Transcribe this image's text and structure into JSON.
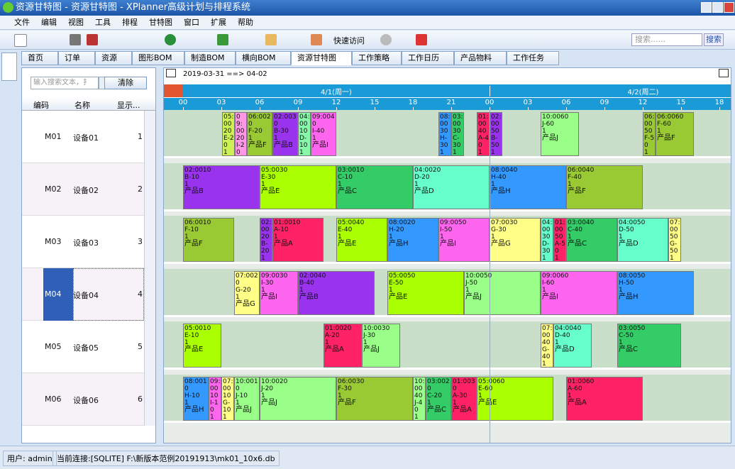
{
  "window": {
    "title": "资源甘特图 - 资源甘特图 - XPlanner高级计划与排程系统"
  },
  "menu": [
    "文件",
    "编辑",
    "视图",
    "工具",
    "排程",
    "甘特图",
    "窗口",
    "扩展",
    "帮助"
  ],
  "toolbar": {
    "quick_access": "快速访问",
    "search_placeholder": "搜索......",
    "search_button": "搜索"
  },
  "tabs": [
    "首页",
    "订单",
    "资源",
    "图形BOM",
    "制造BOM",
    "横向BOM",
    "资源甘特图",
    "工作策略",
    "工作日历",
    "产品物料",
    "工作任务"
  ],
  "left_panel": {
    "search_placeholder": "输入搜索文本，扌",
    "clear_button": "清除",
    "columns": [
      "编码",
      "名称",
      "显示..."
    ],
    "rows": [
      [
        "M01",
        "设备01",
        "1"
      ],
      [
        "M02",
        "设备02",
        "2"
      ],
      [
        "M03",
        "设备03",
        "3"
      ],
      [
        "M04",
        "设备04",
        "4"
      ],
      [
        "M05",
        "设备05",
        "5"
      ],
      [
        "M06",
        "设备06",
        "6"
      ]
    ]
  },
  "gantt": {
    "range": "2019-03-31 ==> 04-02",
    "days": [
      "4/1(周一)",
      "4/2(周二)"
    ],
    "hours": [
      "00",
      "03",
      "06",
      "09",
      "12",
      "15",
      "18",
      "21",
      "00",
      "03",
      "06",
      "09",
      "12",
      "15",
      "18"
    ],
    "rows": [
      {
        "tasks": [
          {
            "code": "05:0020",
            "op": "E-20",
            "qty": "1",
            "color": "#ccf055"
          },
          {
            "code": "09:0020",
            "op": "I-20",
            "qty": "1",
            "color": "#ff99e6"
          },
          {
            "code": "06:0020",
            "op": "F-20",
            "qty": "1",
            "product": "产品F",
            "color": "#99c933"
          },
          {
            "code": "02:0030",
            "op": "B-30",
            "qty": "1",
            "product": "产品B",
            "color": "#9933ee"
          },
          {
            "code": "04:0010",
            "op": "D-10",
            "qty": "1",
            "color": "#88f7aa"
          },
          {
            "code": "09:0040",
            "op": "I-40",
            "qty": "1",
            "product": "产品I",
            "color": "#ff66f0"
          },
          {
            "code": "08:0030",
            "op": "H-30",
            "qty": "1",
            "color": "#3399ff"
          },
          {
            "code": "03:0030",
            "op": "C-30",
            "qty": "1",
            "color": "#33cc66"
          },
          {
            "code": "01:0040",
            "op": "A-40",
            "qty": "1",
            "color": "#ff2266"
          },
          {
            "code": "02:0050",
            "op": "B-50",
            "qty": "1",
            "color": "#9933ee"
          },
          {
            "code": "10:0060",
            "op": "J-60",
            "qty": "1",
            "product": "产品J",
            "color": "#99ff88"
          },
          {
            "code": "06:0050",
            "op": "F-50",
            "qty": "1",
            "color": "#99c933"
          },
          {
            "code": "06:0060",
            "op": "F-60",
            "qty": "1",
            "product": "产品F",
            "color": "#99c933"
          }
        ]
      },
      {
        "tasks": [
          {
            "code": "02:0010",
            "op": "B-10",
            "qty": "1",
            "product": "产品B",
            "color": "#9933ee"
          },
          {
            "code": "05:0030",
            "op": "E-30",
            "qty": "1",
            "product": "产品E",
            "color": "#aaff00"
          },
          {
            "code": "03:0010",
            "op": "C-10",
            "qty": "1",
            "product": "产品C",
            "color": "#33cc66"
          },
          {
            "code": "04:0020",
            "op": "D-20",
            "qty": "1",
            "product": "产品D",
            "color": "#66ffcc"
          },
          {
            "code": "08:0040",
            "op": "H-40",
            "qty": "1",
            "product": "产品H",
            "color": "#3399ff"
          },
          {
            "code": "06:0040",
            "op": "F-40",
            "qty": "1",
            "product": "产品F",
            "color": "#99c933"
          }
        ]
      },
      {
        "tasks": [
          {
            "code": "06:0010",
            "op": "F-10",
            "qty": "1",
            "product": "产品F",
            "color": "#99c933"
          },
          {
            "code": "02:0020",
            "op": "B-20",
            "qty": "1",
            "color": "#9933ee"
          },
          {
            "code": "01:0010",
            "op": "A-10",
            "qty": "1",
            "product": "产品A",
            "color": "#ff2266"
          },
          {
            "code": "05:0040",
            "op": "E-40",
            "qty": "1",
            "product": "产品E",
            "color": "#aaff00"
          },
          {
            "code": "08:0020",
            "op": "H-20",
            "qty": "1",
            "product": "产品H",
            "color": "#3399ff"
          },
          {
            "code": "09:0050",
            "op": "I-50",
            "qty": "1",
            "product": "产品I",
            "color": "#ff66f0"
          },
          {
            "code": "07:0030",
            "op": "G-30",
            "qty": "1",
            "product": "产品G",
            "color": "#ffff88"
          },
          {
            "code": "04:0030",
            "op": "D-30",
            "qty": "1",
            "color": "#66ffcc"
          },
          {
            "code": "01:0050",
            "op": "A-50",
            "qty": "1",
            "color": "#ff2266"
          },
          {
            "code": "03:0040",
            "op": "C-40",
            "qty": "1",
            "product": "产品C",
            "color": "#33cc66"
          },
          {
            "code": "04:0050",
            "op": "D-50",
            "qty": "1",
            "product": "产品D",
            "color": "#66ffcc"
          },
          {
            "code": "07:0050",
            "op": "G-50",
            "qty": "1",
            "color": "#ffff88"
          }
        ]
      },
      {
        "tasks": [
          {
            "code": "07:0020",
            "op": "G-20",
            "qty": "1",
            "product": "产品G",
            "color": "#ffff88"
          },
          {
            "code": "09:0030",
            "op": "I-30",
            "qty": "1",
            "product": "产品I",
            "color": "#ff66f0"
          },
          {
            "code": "02:0040",
            "op": "B-40",
            "qty": "1",
            "product": "产品B",
            "color": "#9933ee"
          },
          {
            "code": "05:0050",
            "op": "E-50",
            "qty": "1",
            "product": "产品E",
            "color": "#aaff00"
          },
          {
            "code": "10:0050",
            "op": "J-50",
            "qty": "1",
            "product": "产品J",
            "color": "#99ff88"
          },
          {
            "code": "09:0060",
            "op": "I-60",
            "qty": "1",
            "product": "产品I",
            "color": "#ff66f0"
          },
          {
            "code": "08:0050",
            "op": "H-50",
            "qty": "1",
            "product": "产品H",
            "color": "#3399ff"
          }
        ]
      },
      {
        "tasks": [
          {
            "code": "05:0010",
            "op": "E-10",
            "qty": "1",
            "product": "产品E",
            "color": "#aaff00"
          },
          {
            "code": "01:0020",
            "op": "A-20",
            "qty": "1",
            "product": "产品A",
            "color": "#ff2266"
          },
          {
            "code": "10:0030",
            "op": "J-30",
            "qty": "1",
            "product": "产品J",
            "color": "#99ff88"
          },
          {
            "code": "07:0040",
            "op": "G-40",
            "qty": "1",
            "color": "#ffff88"
          },
          {
            "code": "04:0040",
            "op": "D-40",
            "qty": "1",
            "product": "产品D",
            "color": "#66ffcc"
          },
          {
            "code": "03:0050",
            "op": "C-50",
            "qty": "1",
            "product": "产品C",
            "color": "#33cc66"
          }
        ]
      },
      {
        "tasks": [
          {
            "code": "08:0010",
            "op": "H-10",
            "qty": "1",
            "product": "产品H",
            "color": "#3399ff"
          },
          {
            "code": "09:0010",
            "op": "I-10",
            "qty": "1",
            "color": "#ff66f0"
          },
          {
            "code": "07:0010",
            "op": "G-10",
            "qty": "1",
            "color": "#ffff88"
          },
          {
            "code": "10:0010",
            "op": "J-10",
            "qty": "1",
            "product": "产品J",
            "color": "#99ff88"
          },
          {
            "code": "10:0020",
            "op": "J-20",
            "qty": "1",
            "product": "产品J",
            "color": "#99ff88"
          },
          {
            "code": "06:0030",
            "op": "F-30",
            "qty": "1",
            "product": "产品F",
            "color": "#99c933"
          },
          {
            "code": "10:0040",
            "op": "J-40",
            "qty": "1",
            "color": "#99ff88"
          },
          {
            "code": "03:0020",
            "op": "C-20",
            "qty": "1",
            "product": "产品C",
            "color": "#33cc66"
          },
          {
            "code": "01:0030",
            "op": "A-30",
            "qty": "1",
            "product": "产品A",
            "color": "#ff2266"
          },
          {
            "code": "05:0060",
            "op": "E-60",
            "qty": "1",
            "product": "产品E",
            "color": "#aaff00"
          },
          {
            "code": "01:0060",
            "op": "A-60",
            "qty": "1",
            "product": "产品A",
            "color": "#ff2266"
          }
        ]
      }
    ]
  },
  "status": {
    "user": "用户: admin",
    "connection": "当前连接:[SQLITE] F:\\新版本范例20191913\\mk01_10x6.db"
  }
}
